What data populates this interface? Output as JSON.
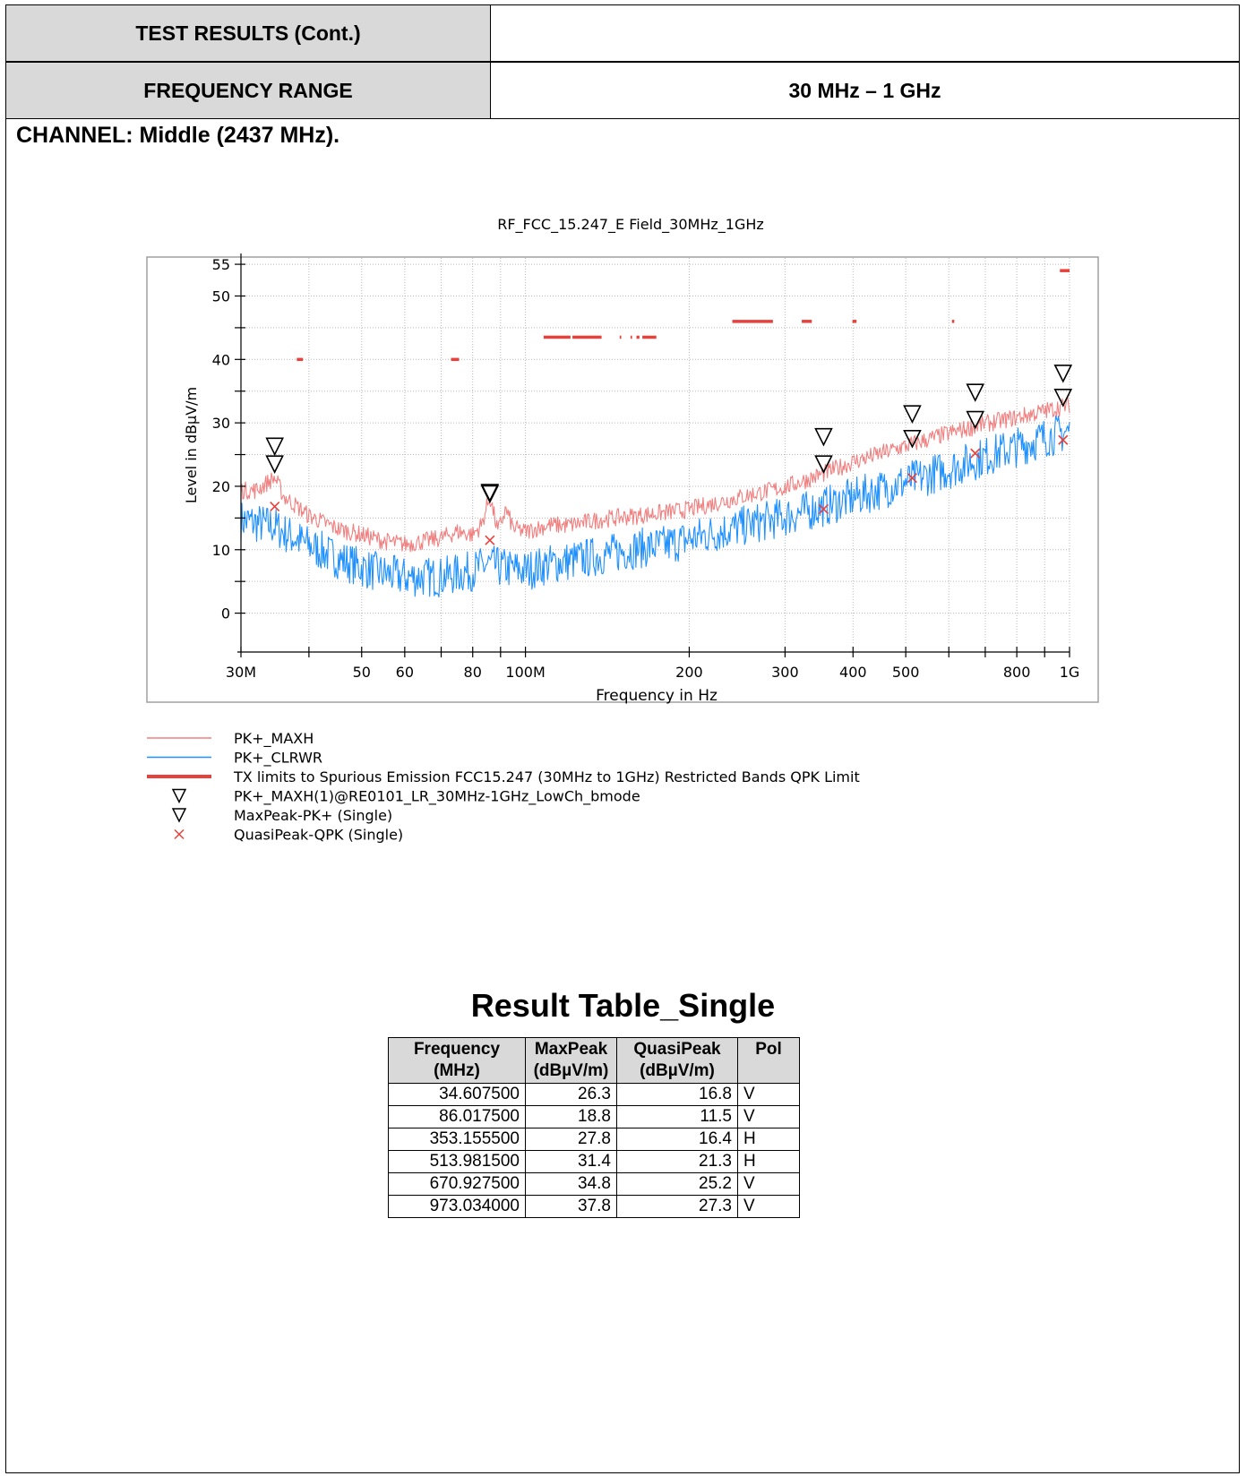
{
  "header": {
    "test_results_label": "TEST RESULTS (Cont.)",
    "test_results_value": "",
    "frequency_range_label": "FREQUENCY RANGE",
    "frequency_range_value": "30 MHz – 1 GHz"
  },
  "channel_label": "CHANNEL: Middle (2437 MHz).",
  "chart_data": {
    "type": "line",
    "title": "RF_FCC_15.247_E Field_30MHz_1GHz",
    "xlabel": "Frequency in Hz",
    "ylabel": "Level in dBµV/m",
    "xscale": "log",
    "xlim": [
      30,
      1000
    ],
    "ylim": [
      -5,
      56
    ],
    "grid": true,
    "x_tick_values": [
      30,
      50,
      60,
      80,
      100,
      200,
      300,
      400,
      500,
      800,
      1000
    ],
    "x_tick_labels": [
      "30M",
      "50",
      "60",
      "80",
      "100M",
      "200",
      "300",
      "400",
      "500",
      "800",
      "1G"
    ],
    "y_tick_values": [
      0,
      10,
      20,
      30,
      40,
      50,
      55
    ],
    "y_tick_labels": [
      "0",
      "10",
      "20",
      "30",
      "40",
      "50",
      "55"
    ],
    "series": [
      {
        "name": "PK+_MAXH",
        "color": "#f08080",
        "x": [
          30,
          32,
          34.6,
          36,
          40,
          45,
          50,
          55,
          60,
          65,
          70,
          75,
          80,
          83,
          86,
          89,
          92,
          95,
          100,
          110,
          120,
          140,
          160,
          180,
          200,
          250,
          300,
          350,
          400,
          500,
          600,
          700,
          800,
          900,
          1000
        ],
        "y": [
          19.5,
          19.5,
          21.5,
          18.5,
          15.5,
          13.5,
          12.5,
          11.5,
          11,
          11.5,
          12,
          13,
          12.5,
          14,
          18.5,
          13,
          16.5,
          13.5,
          13,
          14,
          14,
          15,
          15.5,
          16,
          16.5,
          18.5,
          20,
          22,
          24,
          26.5,
          28.5,
          30,
          31,
          32,
          33
        ]
      },
      {
        "name": "PK+_CLRWR",
        "color": "#1e90ff",
        "x": [
          30,
          32,
          34.6,
          36,
          40,
          45,
          50,
          55,
          60,
          65,
          70,
          75,
          80,
          85,
          90,
          100,
          110,
          120,
          140,
          160,
          180,
          200,
          250,
          300,
          350,
          400,
          500,
          600,
          700,
          800,
          900,
          1000
        ],
        "y": [
          15,
          14.5,
          14,
          13,
          11,
          9,
          7.5,
          6.5,
          6,
          6,
          6,
          6.5,
          7,
          8,
          7.5,
          7,
          8,
          8.5,
          9.5,
          10.5,
          11,
          12,
          14,
          15.5,
          17,
          18.5,
          21,
          23,
          25,
          26.5,
          28,
          29
        ]
      }
    ],
    "limit_line": {
      "name": "TX limits to Spurious Emission FCC15.247 (30MHz to 1GHz) Restricted Bands QPK Limit",
      "color": "#e8413c",
      "segments": [
        {
          "x0": 38,
          "x1": 39,
          "y": 40
        },
        {
          "x0": 73,
          "x1": 75.5,
          "y": 40
        },
        {
          "x0": 108,
          "x1": 121,
          "y": 43.5
        },
        {
          "x0": 122,
          "x1": 138,
          "y": 43.5
        },
        {
          "x0": 149,
          "x1": 150,
          "y": 43.5
        },
        {
          "x0": 156,
          "x1": 157,
          "y": 43.5
        },
        {
          "x0": 160,
          "x1": 162,
          "y": 43.5
        },
        {
          "x0": 164,
          "x1": 174,
          "y": 43.5
        },
        {
          "x0": 240,
          "x1": 285,
          "y": 46
        },
        {
          "x0": 322,
          "x1": 336,
          "y": 46
        },
        {
          "x0": 399,
          "x1": 406,
          "y": 46
        },
        {
          "x0": 608,
          "x1": 614,
          "y": 46
        },
        {
          "x0": 960,
          "x1": 1000,
          "y": 54
        }
      ]
    },
    "markers": {
      "pk_maxh_name": "PK+_MAXH(1)@RE0101_LR_30MHz-1GHz_LowCh_bmode",
      "maxpeak_name": "MaxPeak-PK+ (Single)",
      "quasipeak_name": "QuasiPeak-QPK (Single)",
      "pk_maxh_points": [
        {
          "x": 34.6,
          "y": 23.5
        },
        {
          "x": 86.0,
          "y": 19
        },
        {
          "x": 353.2,
          "y": 23.5
        },
        {
          "x": 514.0,
          "y": 27.5
        },
        {
          "x": 670.9,
          "y": 30.5
        },
        {
          "x": 973.0,
          "y": 34
        }
      ],
      "maxpeak_points": [
        {
          "x": 34.6075,
          "y": 26.3
        },
        {
          "x": 86.0175,
          "y": 18.8
        },
        {
          "x": 353.1555,
          "y": 27.8
        },
        {
          "x": 513.9815,
          "y": 31.4
        },
        {
          "x": 670.9275,
          "y": 34.8
        },
        {
          "x": 973.034,
          "y": 37.8
        }
      ],
      "quasipeak_points": [
        {
          "x": 34.6075,
          "y": 16.8
        },
        {
          "x": 86.0175,
          "y": 11.5
        },
        {
          "x": 353.1555,
          "y": 16.4
        },
        {
          "x": 513.9815,
          "y": 21.3
        },
        {
          "x": 670.9275,
          "y": 25.2
        },
        {
          "x": 973.034,
          "y": 27.3
        }
      ]
    },
    "legend": [
      {
        "label": "PK+_MAXH",
        "kind": "thin-line",
        "color": "#f08080"
      },
      {
        "label": "PK+_CLRWR",
        "kind": "thin-line",
        "color": "#1e90ff"
      },
      {
        "label": "TX limits to Spurious Emission FCC15.247 (30MHz to 1GHz) Restricted Bands QPK Limit",
        "kind": "thick-line",
        "color": "#e8413c"
      },
      {
        "label": "PK+_MAXH(1)@RE0101_LR_30MHz-1GHz_LowCh_bmode",
        "kind": "triangle",
        "color": "#000000"
      },
      {
        "label": "MaxPeak-PK+ (Single)",
        "kind": "triangle",
        "color": "#000000"
      },
      {
        "label": "QuasiPeak-QPK (Single)",
        "kind": "cross",
        "color": "#e8413c"
      }
    ],
    "legend_position": "bottom-left"
  },
  "result_table": {
    "title": "Result Table_Single",
    "headers": [
      [
        "Frequency",
        "(MHz)"
      ],
      [
        "MaxPeak",
        "(dBµV/m)"
      ],
      [
        "QuasiPeak",
        "(dBµV/m)"
      ],
      [
        "Pol",
        ""
      ]
    ],
    "rows": [
      [
        "34.607500",
        "26.3",
        "16.8",
        "V"
      ],
      [
        "86.017500",
        "18.8",
        "11.5",
        "V"
      ],
      [
        "353.155500",
        "27.8",
        "16.4",
        "H"
      ],
      [
        "513.981500",
        "31.4",
        "21.3",
        "H"
      ],
      [
        "670.927500",
        "34.8",
        "25.2",
        "V"
      ],
      [
        "973.034000",
        "37.8",
        "27.3",
        "V"
      ]
    ]
  }
}
